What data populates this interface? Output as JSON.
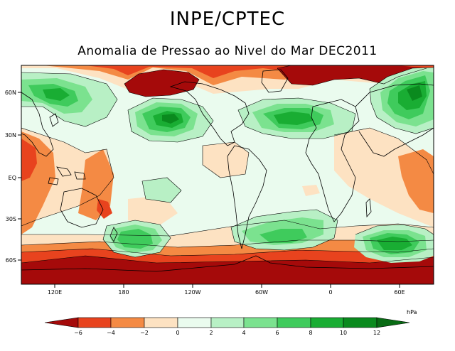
{
  "header": {
    "title": "INPE/CPTEC",
    "subtitle": "Anomalia de Pressao ao Nivel do Mar DEC2011"
  },
  "map": {
    "longitude_ticks": [
      "120E",
      "180",
      "120W",
      "60W",
      "0",
      "60E"
    ],
    "latitude_ticks": [
      "60N",
      "30N",
      "EQ",
      "30S",
      "60S"
    ]
  },
  "colorbar": {
    "unit": "hPa",
    "ticks": [
      "−6",
      "−4",
      "−2",
      "0",
      "2",
      "4",
      "6",
      "8",
      "10",
      "12"
    ],
    "colors": {
      "lt_-6": "#a50a0a",
      "-6_-4": "#e8431e",
      "-4_-2": "#f48a44",
      "-2_0": "#fde2c2",
      "0_2": "#eafbee",
      "2_4": "#b8f0c5",
      "4_6": "#7be28f",
      "6_8": "#3fcb5c",
      "8_10": "#19ad33",
      "10_12": "#0a8a1e",
      "gt_12": "#086b14"
    }
  }
}
